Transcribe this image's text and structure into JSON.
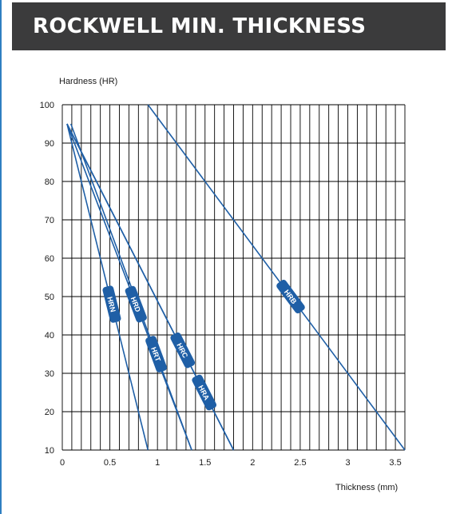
{
  "header": {
    "title": "ROCKWELL MIN. THICKNESS"
  },
  "colors": {
    "title_bg": "#3b3b3c",
    "line": "#1f5fa6",
    "grid": "#000000",
    "accent": "#2f7fc1"
  },
  "chart_data": {
    "type": "line",
    "title": "ROCKWELL MIN. THICKNESS",
    "xlabel": "Thickness (mm)",
    "ylabel": "Hardness (HR)",
    "xlim": [
      0,
      3.6
    ],
    "ylim": [
      10,
      100
    ],
    "grid": true,
    "x_ticks": [
      {
        "value": 0,
        "label": "0"
      },
      {
        "value": 0.5,
        "label": "0.5"
      },
      {
        "value": 1,
        "label": "1"
      },
      {
        "value": 1.5,
        "label": "1.5"
      },
      {
        "value": 2,
        "label": "2"
      },
      {
        "value": 2.5,
        "label": "2.5"
      },
      {
        "value": 3,
        "label": "3"
      },
      {
        "value": 3.5,
        "label": "3.5"
      }
    ],
    "y_ticks": [
      10,
      20,
      30,
      40,
      50,
      60,
      70,
      80,
      90,
      100
    ],
    "series": [
      {
        "name": "HRN",
        "x": [
          0.05,
          0.9
        ],
        "y": [
          95,
          10
        ],
        "label_at": [
          0.48,
          48
        ]
      },
      {
        "name": "HRT",
        "x": [
          0.09,
          1.36
        ],
        "y": [
          95,
          10
        ],
        "label_at": [
          0.95,
          35
        ]
      },
      {
        "name": "HRD",
        "x": [
          0.05,
          1.36
        ],
        "y": [
          95,
          10
        ],
        "label_at": [
          1.02,
          48
        ]
      },
      {
        "name": "HRC",
        "x": [
          0.05,
          1.8
        ],
        "y": [
          95,
          10
        ],
        "label_at": [
          1.25,
          36
        ]
      },
      {
        "name": "HRA",
        "x": [
          0.05,
          1.8
        ],
        "y": [
          95,
          10
        ],
        "label_at": [
          1.47,
          25
        ]
      },
      {
        "name": "HRB",
        "x": [
          0.9,
          3.6
        ],
        "y": [
          100,
          10
        ],
        "label_at": [
          2.36,
          50
        ]
      }
    ]
  }
}
